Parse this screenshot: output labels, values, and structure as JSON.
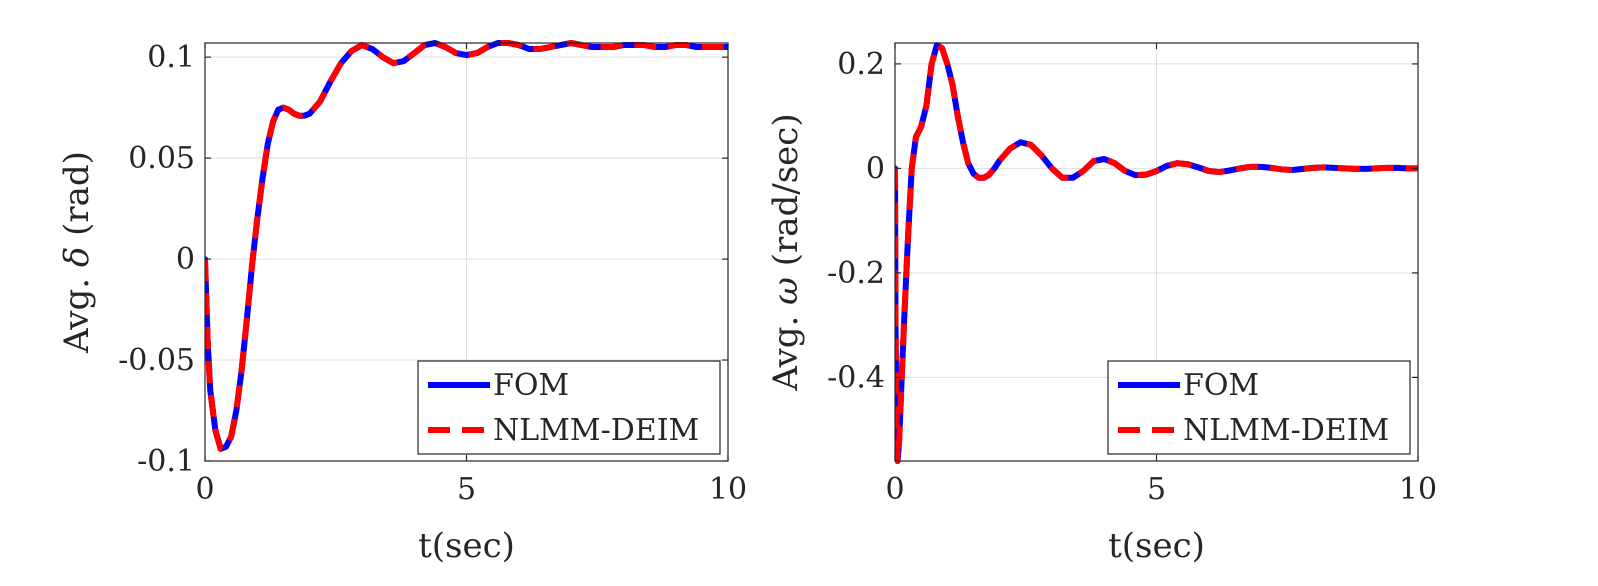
{
  "chart_data": [
    {
      "type": "line",
      "xlabel": "t(sec)",
      "ylabel": {
        "prefix": "Avg. ",
        "symbol": "δ",
        "suffix": " (rad)"
      },
      "xlim": [
        0,
        10
      ],
      "ylim": [
        -0.1,
        0.107
      ],
      "xticks": [
        0,
        5,
        10
      ],
      "xtick_labels": [
        "0",
        "5",
        "10"
      ],
      "yticks": [
        -0.1,
        -0.05,
        0,
        0.05,
        0.1
      ],
      "ytick_labels": [
        "-0.1",
        "-0.05",
        "0",
        "0.05",
        "0.1"
      ],
      "grid": true,
      "legend_position": "bottom-right",
      "series": [
        {
          "name": "FOM",
          "style": "solid",
          "color": "#0000ff",
          "points": [
            [
              0,
              0
            ],
            [
              0.05,
              -0.04
            ],
            [
              0.1,
              -0.065
            ],
            [
              0.2,
              -0.085
            ],
            [
              0.3,
              -0.094
            ],
            [
              0.4,
              -0.093
            ],
            [
              0.5,
              -0.088
            ],
            [
              0.6,
              -0.075
            ],
            [
              0.7,
              -0.055
            ],
            [
              0.8,
              -0.03
            ],
            [
              0.9,
              -0.003
            ],
            [
              1.0,
              0.02
            ],
            [
              1.1,
              0.04
            ],
            [
              1.2,
              0.057
            ],
            [
              1.3,
              0.068
            ],
            [
              1.4,
              0.074
            ],
            [
              1.5,
              0.075
            ],
            [
              1.6,
              0.074
            ],
            [
              1.7,
              0.072
            ],
            [
              1.8,
              0.071
            ],
            [
              1.9,
              0.071
            ],
            [
              2.0,
              0.072
            ],
            [
              2.2,
              0.078
            ],
            [
              2.4,
              0.088
            ],
            [
              2.6,
              0.097
            ],
            [
              2.8,
              0.103
            ],
            [
              3.0,
              0.106
            ],
            [
              3.2,
              0.104
            ],
            [
              3.4,
              0.1
            ],
            [
              3.6,
              0.097
            ],
            [
              3.8,
              0.098
            ],
            [
              4.0,
              0.102
            ],
            [
              4.2,
              0.106
            ],
            [
              4.4,
              0.107
            ],
            [
              4.6,
              0.105
            ],
            [
              4.8,
              0.102
            ],
            [
              5.0,
              0.101
            ],
            [
              5.2,
              0.102
            ],
            [
              5.4,
              0.105
            ],
            [
              5.6,
              0.107
            ],
            [
              5.8,
              0.107
            ],
            [
              6.0,
              0.106
            ],
            [
              6.2,
              0.104
            ],
            [
              6.4,
              0.104
            ],
            [
              6.6,
              0.105
            ],
            [
              6.8,
              0.106
            ],
            [
              7.0,
              0.107
            ],
            [
              7.2,
              0.106
            ],
            [
              7.4,
              0.105
            ],
            [
              7.6,
              0.105
            ],
            [
              7.8,
              0.105
            ],
            [
              8.0,
              0.106
            ],
            [
              8.2,
              0.106
            ],
            [
              8.4,
              0.106
            ],
            [
              8.6,
              0.105
            ],
            [
              8.8,
              0.105
            ],
            [
              9.0,
              0.106
            ],
            [
              9.2,
              0.106
            ],
            [
              9.4,
              0.105
            ],
            [
              9.6,
              0.105
            ],
            [
              9.8,
              0.105
            ],
            [
              10.0,
              0.105
            ]
          ]
        },
        {
          "name": "NLMM-DEIM",
          "style": "dashed",
          "color": "#ff0000",
          "points": [
            [
              0,
              0
            ],
            [
              0.05,
              -0.04
            ],
            [
              0.1,
              -0.065
            ],
            [
              0.2,
              -0.085
            ],
            [
              0.3,
              -0.094
            ],
            [
              0.4,
              -0.093
            ],
            [
              0.5,
              -0.088
            ],
            [
              0.6,
              -0.075
            ],
            [
              0.7,
              -0.055
            ],
            [
              0.8,
              -0.03
            ],
            [
              0.9,
              -0.003
            ],
            [
              1.0,
              0.02
            ],
            [
              1.1,
              0.04
            ],
            [
              1.2,
              0.057
            ],
            [
              1.3,
              0.068
            ],
            [
              1.4,
              0.074
            ],
            [
              1.5,
              0.075
            ],
            [
              1.6,
              0.074
            ],
            [
              1.7,
              0.072
            ],
            [
              1.8,
              0.071
            ],
            [
              1.9,
              0.071
            ],
            [
              2.0,
              0.072
            ],
            [
              2.2,
              0.078
            ],
            [
              2.4,
              0.088
            ],
            [
              2.6,
              0.097
            ],
            [
              2.8,
              0.103
            ],
            [
              3.0,
              0.106
            ],
            [
              3.2,
              0.104
            ],
            [
              3.4,
              0.1
            ],
            [
              3.6,
              0.097
            ],
            [
              3.8,
              0.098
            ],
            [
              4.0,
              0.102
            ],
            [
              4.2,
              0.106
            ],
            [
              4.4,
              0.107
            ],
            [
              4.6,
              0.105
            ],
            [
              4.8,
              0.102
            ],
            [
              5.0,
              0.101
            ],
            [
              5.2,
              0.102
            ],
            [
              5.4,
              0.105
            ],
            [
              5.6,
              0.107
            ],
            [
              5.8,
              0.107
            ],
            [
              6.0,
              0.106
            ],
            [
              6.2,
              0.104
            ],
            [
              6.4,
              0.104
            ],
            [
              6.6,
              0.105
            ],
            [
              6.8,
              0.106
            ],
            [
              7.0,
              0.107
            ],
            [
              7.2,
              0.106
            ],
            [
              7.4,
              0.105
            ],
            [
              7.6,
              0.105
            ],
            [
              7.8,
              0.105
            ],
            [
              8.0,
              0.106
            ],
            [
              8.2,
              0.106
            ],
            [
              8.4,
              0.106
            ],
            [
              8.6,
              0.105
            ],
            [
              8.8,
              0.105
            ],
            [
              9.0,
              0.106
            ],
            [
              9.2,
              0.106
            ],
            [
              9.4,
              0.105
            ],
            [
              9.6,
              0.105
            ],
            [
              9.8,
              0.105
            ],
            [
              10.0,
              0.105
            ]
          ]
        }
      ]
    },
    {
      "type": "line",
      "xlabel": "t(sec)",
      "ylabel": {
        "prefix": "Avg. ",
        "symbol": "ω",
        "suffix": " (rad/sec)"
      },
      "xlim": [
        0,
        10
      ],
      "ylim": [
        -0.56,
        0.24
      ],
      "xticks": [
        0,
        5,
        10
      ],
      "xtick_labels": [
        "0",
        "5",
        "10"
      ],
      "yticks": [
        -0.4,
        -0.2,
        0,
        0.2
      ],
      "ytick_labels": [
        "-0.4",
        "-0.2",
        "0",
        "0.2"
      ],
      "grid": true,
      "legend_position": "bottom-right",
      "series": [
        {
          "name": "FOM",
          "style": "solid",
          "color": "#0000ff",
          "points": [
            [
              0,
              0
            ],
            [
              0.01,
              -0.3
            ],
            [
              0.03,
              -0.5
            ],
            [
              0.05,
              -0.56
            ],
            [
              0.08,
              -0.52
            ],
            [
              0.12,
              -0.42
            ],
            [
              0.18,
              -0.28
            ],
            [
              0.25,
              -0.13
            ],
            [
              0.32,
              0
            ],
            [
              0.4,
              0.06
            ],
            [
              0.5,
              0.08
            ],
            [
              0.6,
              0.12
            ],
            [
              0.7,
              0.2
            ],
            [
              0.8,
              0.236
            ],
            [
              0.9,
              0.23
            ],
            [
              1.0,
              0.2
            ],
            [
              1.1,
              0.16
            ],
            [
              1.2,
              0.1
            ],
            [
              1.3,
              0.05
            ],
            [
              1.4,
              0.01
            ],
            [
              1.5,
              -0.01
            ],
            [
              1.6,
              -0.018
            ],
            [
              1.7,
              -0.018
            ],
            [
              1.8,
              -0.012
            ],
            [
              1.9,
              0
            ],
            [
              2.0,
              0.015
            ],
            [
              2.2,
              0.038
            ],
            [
              2.4,
              0.05
            ],
            [
              2.6,
              0.045
            ],
            [
              2.8,
              0.025
            ],
            [
              3.0,
              0
            ],
            [
              3.2,
              -0.018
            ],
            [
              3.4,
              -0.018
            ],
            [
              3.6,
              -0.005
            ],
            [
              3.8,
              0.014
            ],
            [
              4.0,
              0.018
            ],
            [
              4.2,
              0.01
            ],
            [
              4.4,
              -0.005
            ],
            [
              4.6,
              -0.013
            ],
            [
              4.8,
              -0.012
            ],
            [
              5.0,
              -0.005
            ],
            [
              5.2,
              0.005
            ],
            [
              5.4,
              0.01
            ],
            [
              5.6,
              0.008
            ],
            [
              5.8,
              0.002
            ],
            [
              6.0,
              -0.005
            ],
            [
              6.2,
              -0.007
            ],
            [
              6.4,
              -0.004
            ],
            [
              6.6,
              0
            ],
            [
              6.8,
              0.003
            ],
            [
              7.0,
              0.003
            ],
            [
              7.2,
              0.001
            ],
            [
              7.4,
              -0.002
            ],
            [
              7.6,
              -0.003
            ],
            [
              7.8,
              -0.001
            ],
            [
              8.0,
              0.001
            ],
            [
              8.2,
              0.002
            ],
            [
              8.4,
              0.001
            ],
            [
              8.6,
              0
            ],
            [
              8.8,
              -0.001
            ],
            [
              9.0,
              -0.001
            ],
            [
              9.2,
              0
            ],
            [
              9.4,
              0.001
            ],
            [
              9.6,
              0.001
            ],
            [
              9.8,
              0
            ],
            [
              10.0,
              0
            ]
          ]
        },
        {
          "name": "NLMM-DEIM",
          "style": "dashed",
          "color": "#ff0000",
          "points": [
            [
              0,
              0
            ],
            [
              0.01,
              -0.3
            ],
            [
              0.03,
              -0.5
            ],
            [
              0.05,
              -0.56
            ],
            [
              0.08,
              -0.52
            ],
            [
              0.12,
              -0.42
            ],
            [
              0.18,
              -0.28
            ],
            [
              0.25,
              -0.13
            ],
            [
              0.32,
              0
            ],
            [
              0.4,
              0.06
            ],
            [
              0.5,
              0.08
            ],
            [
              0.6,
              0.12
            ],
            [
              0.7,
              0.2
            ],
            [
              0.8,
              0.236
            ],
            [
              0.9,
              0.23
            ],
            [
              1.0,
              0.2
            ],
            [
              1.1,
              0.16
            ],
            [
              1.2,
              0.1
            ],
            [
              1.3,
              0.05
            ],
            [
              1.4,
              0.01
            ],
            [
              1.5,
              -0.01
            ],
            [
              1.6,
              -0.018
            ],
            [
              1.7,
              -0.018
            ],
            [
              1.8,
              -0.012
            ],
            [
              1.9,
              0
            ],
            [
              2.0,
              0.015
            ],
            [
              2.2,
              0.038
            ],
            [
              2.4,
              0.05
            ],
            [
              2.6,
              0.045
            ],
            [
              2.8,
              0.025
            ],
            [
              3.0,
              0
            ],
            [
              3.2,
              -0.018
            ],
            [
              3.4,
              -0.018
            ],
            [
              3.6,
              -0.005
            ],
            [
              3.8,
              0.014
            ],
            [
              4.0,
              0.018
            ],
            [
              4.2,
              0.01
            ],
            [
              4.4,
              -0.005
            ],
            [
              4.6,
              -0.013
            ],
            [
              4.8,
              -0.012
            ],
            [
              5.0,
              -0.005
            ],
            [
              5.2,
              0.005
            ],
            [
              5.4,
              0.01
            ],
            [
              5.6,
              0.008
            ],
            [
              5.8,
              0.002
            ],
            [
              6.0,
              -0.005
            ],
            [
              6.2,
              -0.007
            ],
            [
              6.4,
              -0.004
            ],
            [
              6.6,
              0
            ],
            [
              6.8,
              0.003
            ],
            [
              7.0,
              0.003
            ],
            [
              7.2,
              0.001
            ],
            [
              7.4,
              -0.002
            ],
            [
              7.6,
              -0.003
            ],
            [
              7.8,
              -0.001
            ],
            [
              8.0,
              0.001
            ],
            [
              8.2,
              0.002
            ],
            [
              8.4,
              0.001
            ],
            [
              8.6,
              0
            ],
            [
              8.8,
              -0.001
            ],
            [
              9.0,
              -0.001
            ],
            [
              9.2,
              0
            ],
            [
              9.4,
              0.001
            ],
            [
              9.6,
              0.001
            ],
            [
              9.8,
              0
            ],
            [
              10.0,
              0
            ]
          ]
        }
      ]
    }
  ]
}
